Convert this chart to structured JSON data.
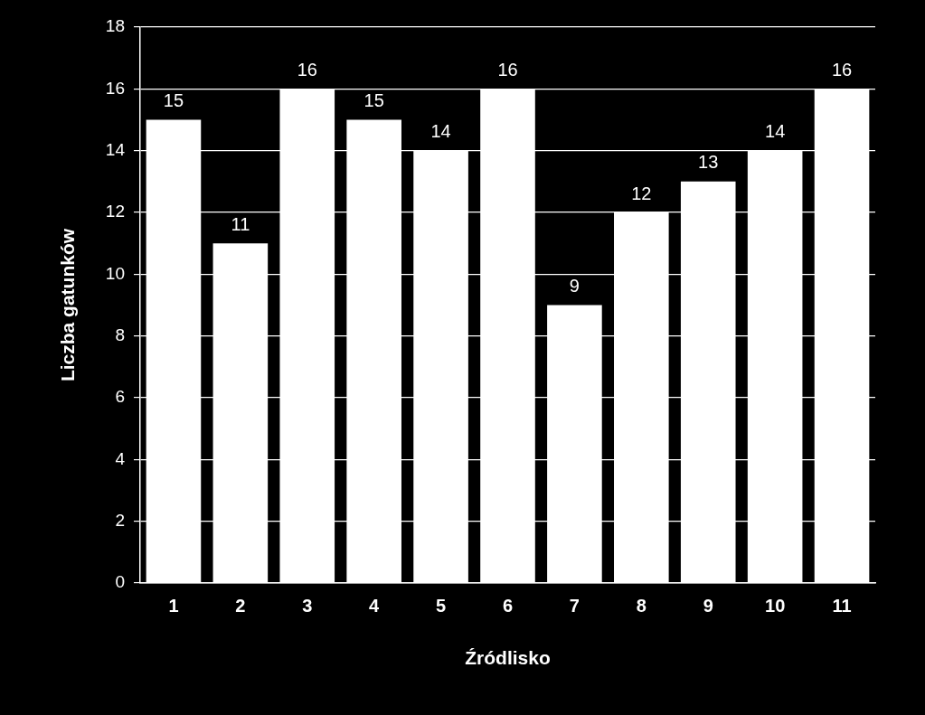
{
  "chart_data": {
    "type": "bar",
    "xlabel": "Źródlisko",
    "ylabel": "Liczba gatunków",
    "categories": [
      "1",
      "2",
      "3",
      "4",
      "5",
      "6",
      "7",
      "8",
      "9",
      "10",
      "11"
    ],
    "values": [
      15,
      11,
      16,
      15,
      14,
      16,
      9,
      12,
      13,
      14,
      16
    ],
    "color": "#ffffff",
    "ylim": [
      0,
      18
    ],
    "yticks": [
      0,
      2,
      4,
      6,
      8,
      10,
      12,
      14,
      16,
      18
    ],
    "grid": "y",
    "data_labels": true,
    "legend": false
  }
}
